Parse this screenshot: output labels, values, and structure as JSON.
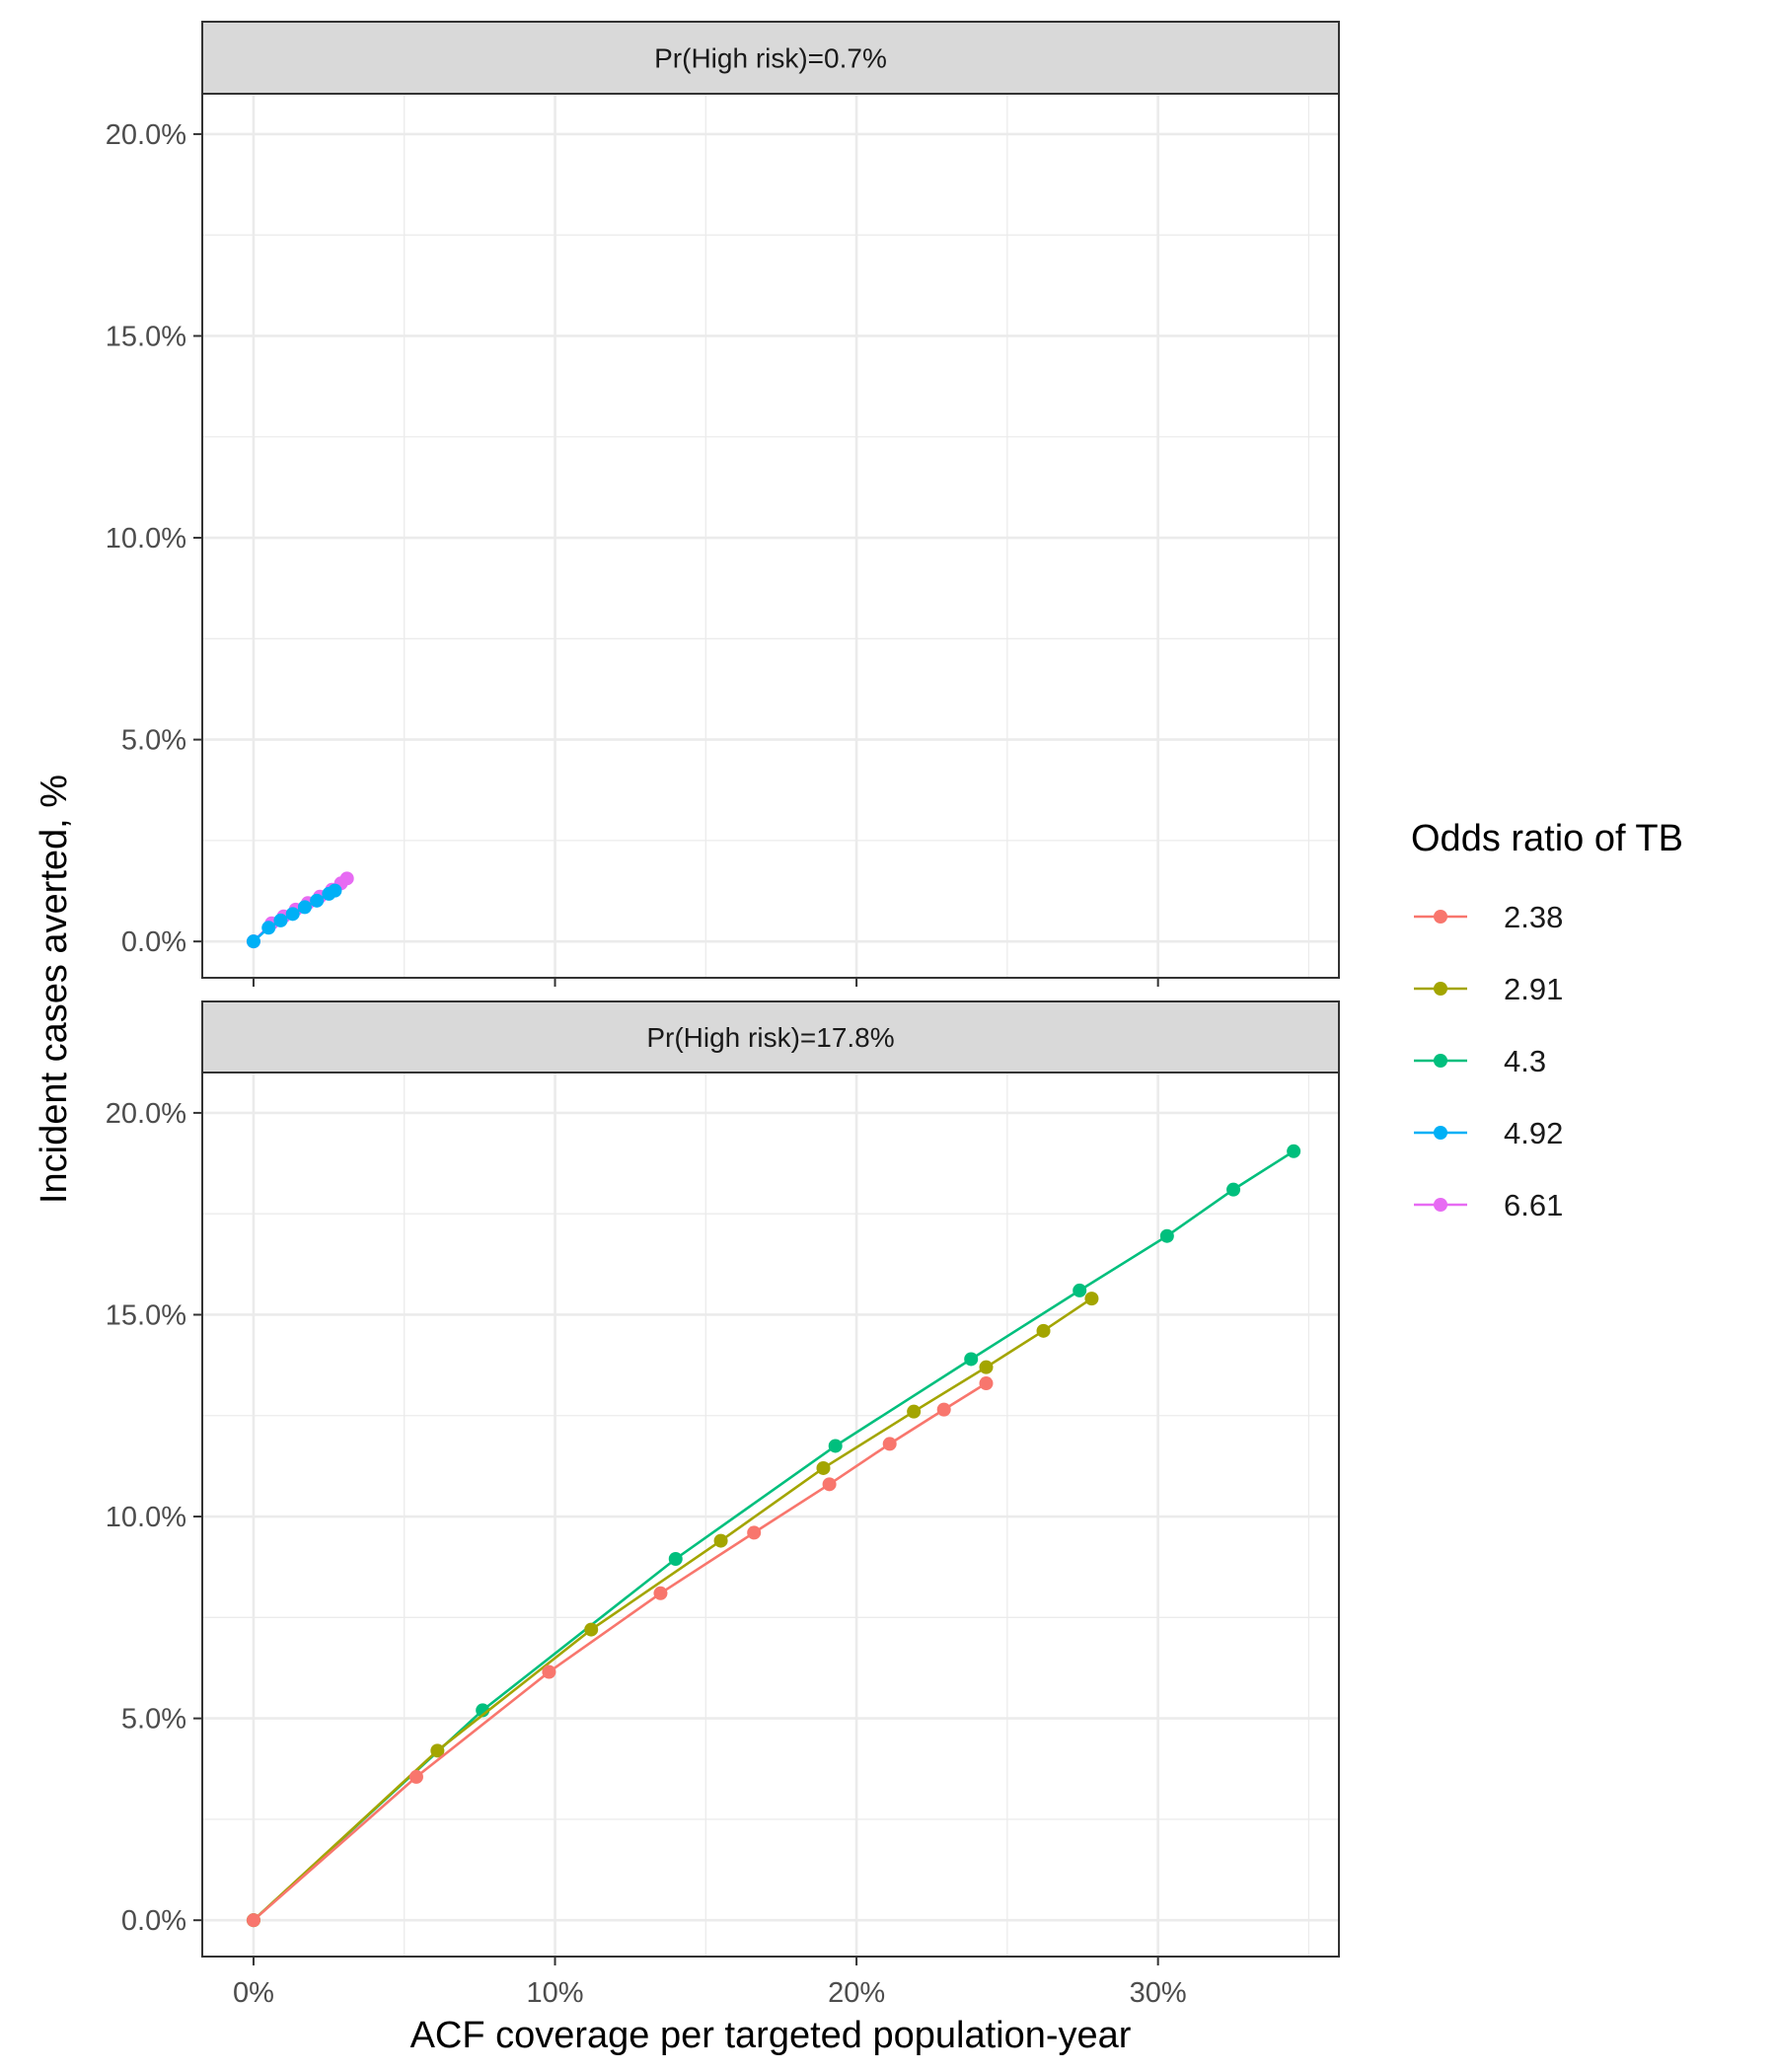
{
  "chart_data": {
    "type": "line",
    "xlabel": "ACF coverage per targeted population-year",
    "ylabel": "Incident cases averted, %",
    "xlim": [
      -0.017,
      0.36
    ],
    "ylim": [
      -0.009,
      0.21
    ],
    "x_ticks": [
      "0%",
      "10%",
      "20%",
      "30%"
    ],
    "y_ticks": [
      "0.0%",
      "5.0%",
      "10.0%",
      "15.0%",
      "20.0%"
    ],
    "grid": true,
    "legend": {
      "title": "Odds ratio of TB",
      "position": "right",
      "entries": [
        {
          "label": "2.38",
          "color": "#F8766D"
        },
        {
          "label": "2.91",
          "color": "#A3A500"
        },
        {
          "label": "4.3",
          "color": "#00BF7D"
        },
        {
          "label": "4.92",
          "color": "#00B0F6"
        },
        {
          "label": "6.61",
          "color": "#E76BF3"
        }
      ]
    },
    "panels": [
      {
        "strip": "Pr(High risk)=0.7%",
        "series": [
          {
            "name": "6.61",
            "color": "#E76BF3",
            "points": [
              [
                0.0,
                0.0
              ],
              [
                0.006,
                0.0045
              ],
              [
                0.01,
                0.0062
              ],
              [
                0.014,
                0.0079
              ],
              [
                0.018,
                0.0095
              ],
              [
                0.022,
                0.0111
              ],
              [
                0.026,
                0.0128
              ],
              [
                0.029,
                0.0144
              ],
              [
                0.031,
                0.0156
              ]
            ]
          },
          {
            "name": "4.92",
            "color": "#00B0F6",
            "points": [
              [
                0.0,
                0.0
              ],
              [
                0.005,
                0.0034
              ],
              [
                0.009,
                0.0052
              ],
              [
                0.013,
                0.0068
              ],
              [
                0.017,
                0.0085
              ],
              [
                0.021,
                0.0101
              ],
              [
                0.025,
                0.0118
              ],
              [
                0.027,
                0.0126
              ]
            ]
          }
        ]
      },
      {
        "strip": "Pr(High risk)=17.8%",
        "series": [
          {
            "name": "4.3",
            "color": "#00BF7D",
            "points": [
              [
                0.0,
                0.0
              ],
              [
                0.076,
                0.052
              ],
              [
                0.14,
                0.0895
              ],
              [
                0.193,
                0.1175
              ],
              [
                0.238,
                0.139
              ],
              [
                0.274,
                0.156
              ],
              [
                0.303,
                0.1695
              ],
              [
                0.325,
                0.181
              ],
              [
                0.345,
                0.1905
              ]
            ]
          },
          {
            "name": "2.91",
            "color": "#A3A500",
            "points": [
              [
                0.0,
                0.0
              ],
              [
                0.061,
                0.042
              ],
              [
                0.112,
                0.072
              ],
              [
                0.155,
                0.094
              ],
              [
                0.189,
                0.112
              ],
              [
                0.219,
                0.126
              ],
              [
                0.243,
                0.137
              ],
              [
                0.262,
                0.146
              ],
              [
                0.278,
                0.154
              ]
            ]
          },
          {
            "name": "2.38",
            "color": "#F8766D",
            "points": [
              [
                0.0,
                0.0
              ],
              [
                0.054,
                0.0355
              ],
              [
                0.098,
                0.0615
              ],
              [
                0.135,
                0.081
              ],
              [
                0.166,
                0.096
              ],
              [
                0.191,
                0.108
              ],
              [
                0.211,
                0.118
              ],
              [
                0.229,
                0.1265
              ],
              [
                0.243,
                0.133
              ]
            ]
          }
        ]
      }
    ]
  }
}
